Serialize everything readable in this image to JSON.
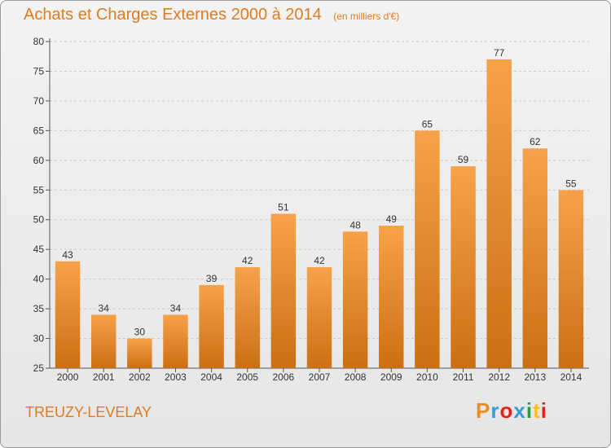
{
  "header": {
    "title": "Achats et Charges Externes 2000 à 2014",
    "subtitle": "(en milliers d'€)"
  },
  "footer": {
    "commune": "TREUZY-LEVELAY",
    "logo_text": "Proxiti",
    "logo_colors": [
      "#f28c1e",
      "#3a9bd9",
      "#e2231a",
      "#3a9bd9",
      "#2e9a3e",
      "#f7c11a",
      "#e2231a"
    ]
  },
  "colors": {
    "bar_top": "#f7a24a",
    "bar_bottom": "#cc6f14",
    "title": "#e07c20",
    "grid": "#c8c8c8",
    "axis": "#555555"
  },
  "chart_data": {
    "type": "bar",
    "title": "Achats et Charges Externes 2000 à 2014",
    "subtitle": "(en milliers d'€)",
    "categories": [
      "2000",
      "2001",
      "2002",
      "2003",
      "2004",
      "2005",
      "2006",
      "2007",
      "2008",
      "2009",
      "2010",
      "2011",
      "2012",
      "2013",
      "2014"
    ],
    "values": [
      43,
      34,
      30,
      34,
      39,
      42,
      51,
      42,
      48,
      49,
      65,
      59,
      77,
      62,
      55
    ],
    "ylim": [
      25,
      80
    ],
    "yticks": [
      25,
      30,
      35,
      40,
      45,
      50,
      55,
      60,
      65,
      70,
      75,
      80
    ],
    "grid": true,
    "xlabel": "",
    "ylabel": ""
  }
}
